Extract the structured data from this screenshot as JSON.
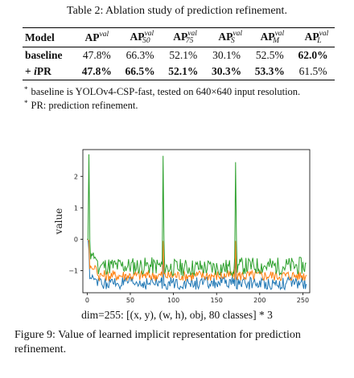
{
  "table": {
    "caption": "Table 2: Ablation study of prediction refinement.",
    "headers": [
      {
        "label": "Model"
      },
      {
        "main": "AP",
        "sup": "val",
        "sub": ""
      },
      {
        "main": "AP",
        "sup": "val",
        "sub": "50"
      },
      {
        "main": "AP",
        "sup": "val",
        "sub": "75"
      },
      {
        "main": "AP",
        "sup": "val",
        "sub": "S"
      },
      {
        "main": "AP",
        "sup": "val",
        "sub": "M"
      },
      {
        "main": "AP",
        "sup": "val",
        "sub": "L"
      }
    ],
    "rows": [
      {
        "model": "baseline",
        "values": [
          "47.8%",
          "66.3%",
          "52.1%",
          "30.1%",
          "52.5%",
          "62.0%"
        ],
        "bold": [
          false,
          false,
          false,
          false,
          false,
          true
        ]
      },
      {
        "model": "+ iPR",
        "values": [
          "47.8%",
          "66.5%",
          "52.1%",
          "30.3%",
          "53.3%",
          "61.5%"
        ],
        "bold": [
          true,
          true,
          true,
          true,
          true,
          false
        ]
      }
    ],
    "notes": [
      "baseline is YOLOv4-CSP-fast, tested on 640×640 input resolution.",
      "PR: prediction refinement."
    ]
  },
  "chart_data": {
    "type": "line",
    "xlim": [
      -5,
      258
    ],
    "ylim": [
      -1.7,
      2.85
    ],
    "xticks": [
      0,
      50,
      100,
      150,
      200,
      250
    ],
    "yticks": [
      -1,
      0,
      1,
      2
    ],
    "ylabel": "value",
    "xlabel": "",
    "grid": false,
    "colors": [
      "#2ca02c",
      "#ff7f0e",
      "#1f77b4"
    ],
    "spikes": [
      {
        "x": 2,
        "y": 2.7
      },
      {
        "x": 88,
        "y": 2.65
      },
      {
        "x": 172,
        "y": 2.45
      }
    ],
    "series_levels": [
      {
        "base": -0.85,
        "early": -0.55,
        "after_spike": 0.0,
        "noise": 0.28
      },
      {
        "base": -1.15,
        "early": -0.9,
        "after_spike": -0.55,
        "noise": 0.18
      },
      {
        "base": -1.4,
        "early": -1.2,
        "after_spike": -0.85,
        "noise": 0.2
      }
    ],
    "n_points": 255
  },
  "axis": {
    "dim_label": "dim=255: [(x, y), (w, h), obj, 80 classes] * 3"
  },
  "figure": {
    "caption": "Figure 9: Value of learned implicit representation for prediction refinement."
  }
}
